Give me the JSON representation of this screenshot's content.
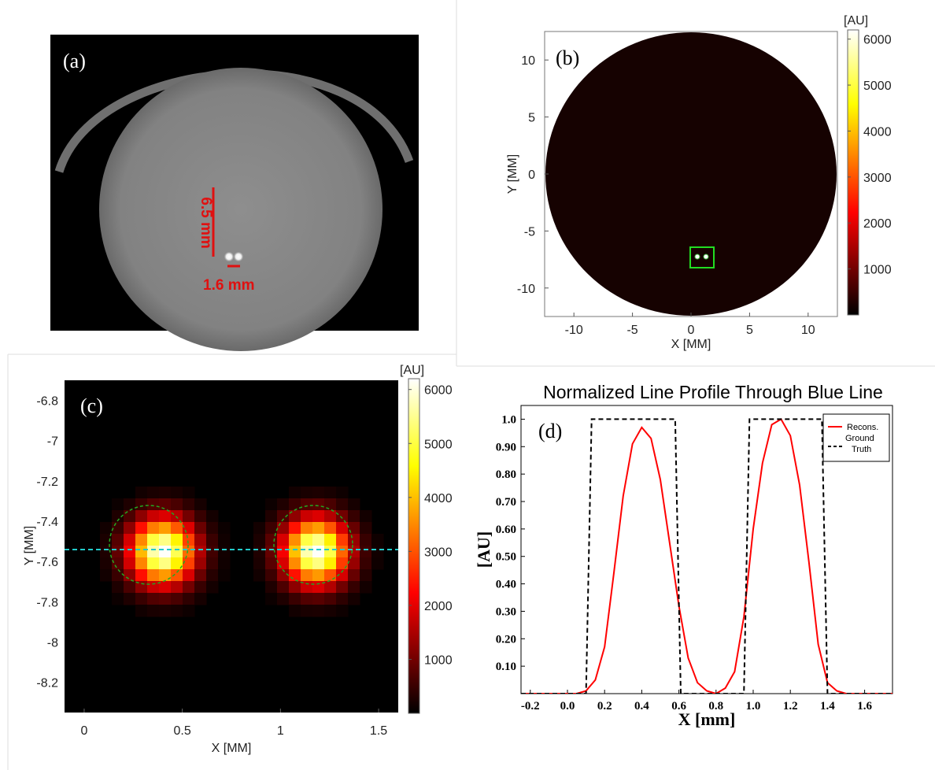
{
  "panels": {
    "a": {
      "label": "(a)",
      "annotation_vertical": "6.5 mm",
      "annotation_horizontal": "1.6 mm"
    },
    "b": {
      "label": "(b)",
      "xlabel": "X [MM]",
      "ylabel": "Y [MM]",
      "xticks": [
        "-10",
        "-5",
        "0",
        "5",
        "10"
      ],
      "yticks": [
        "10",
        "5",
        "0",
        "-5",
        "-10"
      ],
      "colorbar_title": "[AU]",
      "colorbar_ticks": [
        "6000",
        "5000",
        "4000",
        "3000",
        "2000",
        "1000"
      ]
    },
    "c": {
      "label": "(c)",
      "xlabel": "X [MM]",
      "ylabel": "Y [MM]",
      "xticks": [
        "0",
        "0.5",
        "1",
        "1.5"
      ],
      "yticks": [
        "-6.8",
        "-7",
        "-7.2",
        "-7.4",
        "-7.6",
        "-7.8",
        "-8",
        "-8.2"
      ],
      "colorbar_title": "[AU]",
      "colorbar_ticks": [
        "6000",
        "5000",
        "4000",
        "3000",
        "2000",
        "1000"
      ]
    },
    "d": {
      "label": "(d)",
      "title": "Normalized Line Profile Through Blue Line",
      "xlabel": "X [mm]",
      "ylabel": "[AU]",
      "legend": [
        "Recons.",
        "Ground Truth"
      ]
    }
  },
  "colors": {
    "recons": "#ff0000",
    "ground_truth": "#000000",
    "annotation": "#e01010",
    "roi_box": "#22dd22",
    "profile_line": "#22cccc",
    "circle": "#22aa22"
  },
  "chart_data": [
    {
      "type": "heatmap",
      "panel": "b",
      "xlim": [
        -12.5,
        12.5
      ],
      "ylim": [
        -12.5,
        12.5
      ],
      "clim": [
        0,
        6200
      ],
      "colormap": "hot"
    },
    {
      "type": "heatmap",
      "panel": "c",
      "xlim": [
        -0.1,
        1.6
      ],
      "ylim": [
        -8.35,
        -6.7
      ],
      "clim": [
        0,
        6200
      ],
      "colormap": "hot",
      "sources": [
        {
          "x": 0.4,
          "y": -7.55,
          "radius": 0.2
        },
        {
          "x": 1.18,
          "y": -7.55,
          "radius": 0.2
        }
      ],
      "profile_y": -7.55
    },
    {
      "type": "line",
      "panel": "d",
      "xlim": [
        -0.25,
        1.75
      ],
      "ylim": [
        0,
        1.05
      ],
      "xticks": [
        -0.2,
        0.0,
        0.2,
        0.4,
        0.6,
        0.8,
        1.0,
        1.2,
        1.4,
        1.6
      ],
      "xtick_labels": [
        "-0.2",
        "0.0",
        "0.2",
        "0.4",
        "0.6",
        "0.8",
        "1.0",
        "1.2",
        "1.4",
        "1.6"
      ],
      "yticks": [
        0.1,
        0.2,
        0.3,
        0.4,
        0.5,
        0.6,
        0.7,
        0.8,
        0.9,
        1.0
      ],
      "ytick_labels": [
        "0.10",
        "0.20",
        "0.30",
        "0.40",
        "0.50",
        "0.60",
        "0.70",
        "0.80",
        "0.90",
        "1.0"
      ],
      "series": [
        {
          "name": "Recons.",
          "x": [
            -0.25,
            0.05,
            0.1,
            0.15,
            0.2,
            0.25,
            0.3,
            0.35,
            0.4,
            0.45,
            0.5,
            0.55,
            0.6,
            0.65,
            0.7,
            0.75,
            0.8,
            0.85,
            0.9,
            0.95,
            1.0,
            1.05,
            1.1,
            1.15,
            1.2,
            1.25,
            1.3,
            1.35,
            1.4,
            1.45,
            1.5,
            1.75
          ],
          "y": [
            0,
            0,
            0.01,
            0.05,
            0.17,
            0.44,
            0.72,
            0.91,
            0.97,
            0.93,
            0.78,
            0.55,
            0.32,
            0.13,
            0.04,
            0.01,
            0,
            0.02,
            0.08,
            0.28,
            0.6,
            0.84,
            0.98,
            1.0,
            0.94,
            0.76,
            0.48,
            0.18,
            0.04,
            0.01,
            0,
            0
          ]
        },
        {
          "name": "Ground Truth",
          "x": [
            -0.25,
            0.1,
            0.13,
            0.58,
            0.61,
            0.95,
            0.98,
            1.37,
            1.4,
            1.75
          ],
          "y": [
            0,
            0,
            1.0,
            1.0,
            0,
            0,
            1.0,
            1.0,
            0,
            0
          ]
        }
      ]
    }
  ]
}
